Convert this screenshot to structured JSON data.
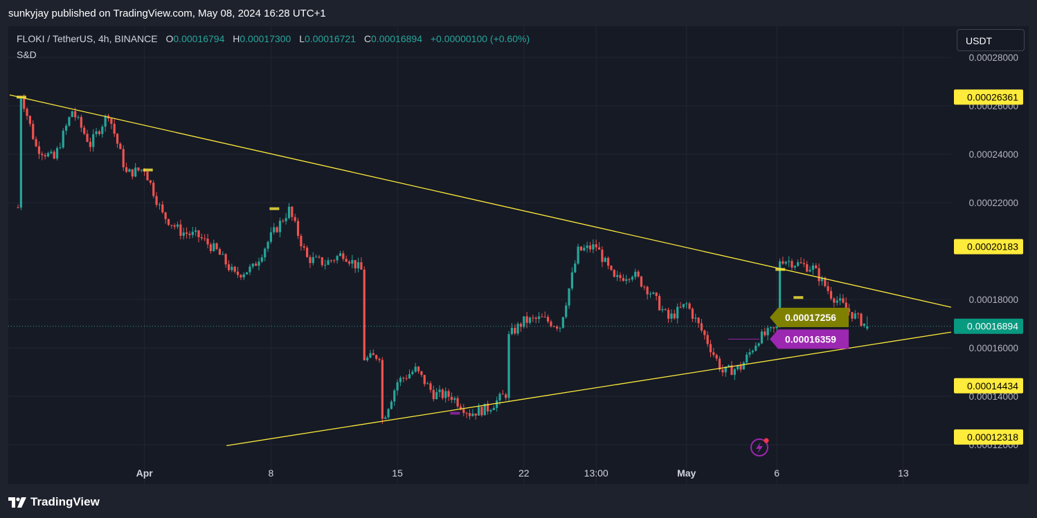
{
  "header": {
    "published": "sunkyjay published on TradingView.com, May 08, 2024 16:28 UTC+1"
  },
  "legend": {
    "symbol": "FLOKI / TetherUS, 4h, BINANCE",
    "o_label": "O",
    "o_value": "0.00016794",
    "h_label": "H",
    "h_value": "0.00017300",
    "l_label": "L",
    "l_value": "0.00016721",
    "c_label": "C",
    "c_value": "0.00016894",
    "change": "+0.00000100 (+0.60%)"
  },
  "indicator_label": "S&D",
  "currency_button": "USDT",
  "footer": {
    "logo_text": "TradingView"
  },
  "colors": {
    "up": "#26a69a",
    "down": "#ef5350",
    "trendline": "#ffeb3b",
    "support_zone": "#9c27b0"
  },
  "chart_data": {
    "type": "candlestick",
    "ylim": [
      0.000116,
      0.000286
    ],
    "y_ticks": [
      "0.00012000",
      "0.00014000",
      "0.00016000",
      "0.00018000",
      "0.00022000",
      "0.00024000",
      "0.00026000",
      "0.00028000"
    ],
    "x_ticks": [
      "Apr",
      "8",
      "15",
      "22",
      "13:00",
      "May",
      "6",
      "13"
    ],
    "price_labels": [
      {
        "value": 0.00026361,
        "text": "0.00026361",
        "bg": "#ffeb3b",
        "fg": "#000000"
      },
      {
        "value": 0.00020183,
        "text": "0.00020183",
        "bg": "#ffeb3b",
        "fg": "#000000"
      },
      {
        "value": 0.00014434,
        "text": "0.00014434",
        "bg": "#ffeb3b",
        "fg": "#000000"
      },
      {
        "value": 0.00012318,
        "text": "0.00012318",
        "bg": "#ffeb3b",
        "fg": "#000000"
      },
      {
        "value": 0.00016894,
        "text": "0.00016894",
        "bg": "#089981",
        "fg": "#ffffff"
      }
    ],
    "callouts": [
      {
        "value": 0.00017256,
        "text": "0.00017256",
        "bg": "#808000"
      },
      {
        "value": 0.00016359,
        "text": "0.00016359",
        "bg": "#9c27b0"
      }
    ],
    "trendlines": [
      {
        "name": "upper",
        "from": [
          "Mar 25",
          0.0002645
        ],
        "to": [
          "May 20",
          0.0001768
        ]
      },
      {
        "name": "lower",
        "from": [
          "Apr 06",
          0.0001196
        ],
        "to": [
          "May 20",
          0.0001665
        ]
      }
    ],
    "path": [
      [
        "Mar 25",
        0.000218
      ],
      [
        "Mar 25",
        0.000265
      ],
      [
        "Mar 26",
        0.000243
      ],
      [
        "Mar 27",
        0.000238
      ],
      [
        "Mar 28",
        0.000258
      ],
      [
        "Mar 29",
        0.000244
      ],
      [
        "Mar 30",
        0.000257
      ],
      [
        "Mar 31",
        0.000232
      ],
      [
        "Apr 01",
        0.000234
      ],
      [
        "Apr 02",
        0.000215
      ],
      [
        "Apr 03",
        0.000208
      ],
      [
        "Apr 04",
        0.000206
      ],
      [
        "Apr 05",
        0.0002
      ],
      [
        "Apr 06",
        0.00019
      ],
      [
        "Apr 07",
        0.000193
      ],
      [
        "Apr 08",
        0.000206
      ],
      [
        "Apr 09",
        0.000217
      ],
      [
        "Apr 10",
        0.000197
      ],
      [
        "Apr 11",
        0.000195
      ],
      [
        "Apr 12",
        0.000199
      ],
      [
        "Apr 13",
        0.000192
      ],
      [
        "Apr 13",
        0.000155
      ],
      [
        "Apr 14",
        0.000157
      ],
      [
        "Apr 14",
        0.00013
      ],
      [
        "Apr 15",
        0.000146
      ],
      [
        "Apr 16",
        0.000151
      ],
      [
        "Apr 17",
        0.000141
      ],
      [
        "Apr 18",
        0.00014
      ],
      [
        "Apr 19",
        0.000133
      ],
      [
        "Apr 20",
        0.000135
      ],
      [
        "Apr 21",
        0.000141
      ],
      [
        "Apr 21",
        0.000165
      ],
      [
        "Apr 22",
        0.000171
      ],
      [
        "Apr 23",
        0.000172
      ],
      [
        "Apr 24",
        0.000169
      ],
      [
        "Apr 25",
        0.0002
      ],
      [
        "Apr 26",
        0.000202
      ],
      [
        "Apr 27",
        0.000188
      ],
      [
        "Apr 28",
        0.000191
      ],
      [
        "Apr 29",
        0.000183
      ],
      [
        "Apr 30",
        0.000172
      ],
      [
        "May 01",
        0.000178
      ],
      [
        "May 02",
        0.000165
      ],
      [
        "May 03",
        0.00015
      ],
      [
        "May 04",
        0.000152
      ],
      [
        "May 05",
        0.000164
      ],
      [
        "May 06",
        0.000168
      ],
      [
        "May 06",
        0.000197
      ],
      [
        "May 07",
        0.000195
      ],
      [
        "May 08",
        0.000193
      ],
      [
        "May 09",
        0.000182
      ],
      [
        "May 10",
        0.000175
      ],
      [
        "May 11",
        0.000169
      ]
    ]
  }
}
